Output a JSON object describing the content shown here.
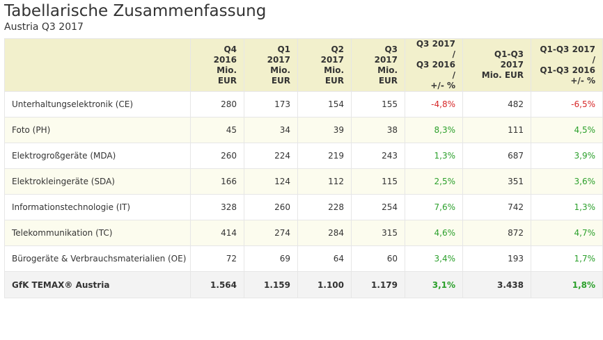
{
  "title": "Tabellarische Zusammenfassung",
  "subtitle": "Austria Q3 2017",
  "colors": {
    "header_bg": "#f2f0cc",
    "alt_row_bg": "#fcfcee",
    "total_row_bg": "#f3f3f3",
    "positive": "#2ca02c",
    "negative": "#d62728"
  },
  "table": {
    "headers": [
      [
        ""
      ],
      [
        "Q4 2016",
        "Mio. EUR"
      ],
      [
        "Q1 2017",
        "Mio. EUR"
      ],
      [
        "Q2 2017",
        "Mio. EUR"
      ],
      [
        "Q3 2017",
        "Mio. EUR"
      ],
      [
        "Q3 2017 /",
        "Q3 2016 /",
        "+/- %"
      ],
      [
        "Q1-Q3 2017",
        "Mio. EUR"
      ],
      [
        "Q1-Q3 2017 /",
        "Q1-Q3 2016",
        "+/- %"
      ]
    ],
    "rows": [
      {
        "label": "Unterhaltungselektronik (CE)",
        "cells": [
          "280",
          "173",
          "154",
          "155",
          "-4,8%",
          "482",
          "-6,5%"
        ]
      },
      {
        "label": "Foto (PH)",
        "cells": [
          "45",
          "34",
          "39",
          "38",
          "8,3%",
          "111",
          "4,5%"
        ]
      },
      {
        "label": "Elektrogroßgeräte (MDA)",
        "cells": [
          "260",
          "224",
          "219",
          "243",
          "1,3%",
          "687",
          "3,9%"
        ]
      },
      {
        "label": "Elektrokleingeräte (SDA)",
        "cells": [
          "166",
          "124",
          "112",
          "115",
          "2,5%",
          "351",
          "3,6%"
        ]
      },
      {
        "label": "Informationstechnologie (IT)",
        "cells": [
          "328",
          "260",
          "228",
          "254",
          "7,6%",
          "742",
          "1,3%"
        ]
      },
      {
        "label": "Telekommunikation (TC)",
        "cells": [
          "414",
          "274",
          "284",
          "315",
          "4,6%",
          "872",
          "4,7%"
        ]
      },
      {
        "label": "Bürogeräte & Verbrauchsmaterialien (OE)",
        "cells": [
          "72",
          "69",
          "64",
          "60",
          "3,4%",
          "193",
          "1,7%"
        ]
      }
    ],
    "total": {
      "label": "GfK TEMAX® Austria",
      "cells": [
        "1.564",
        "1.159",
        "1.100",
        "1.179",
        "3,1%",
        "3.438",
        "1,8%"
      ]
    }
  }
}
